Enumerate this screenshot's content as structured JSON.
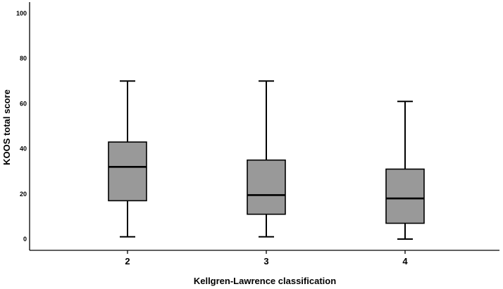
{
  "chart_data": {
    "type": "boxplot",
    "title": "",
    "xlabel": "Kellgren-Lawrence classification",
    "ylabel": "KOOS total score",
    "ylim": [
      0,
      100
    ],
    "yticks": [
      "0",
      "20",
      "40",
      "60",
      "80",
      "100"
    ],
    "yticks_values": [
      0,
      20,
      40,
      60,
      80,
      100
    ],
    "grid": false,
    "categories": [
      "2",
      "3",
      "4"
    ],
    "boxes": [
      {
        "category": "2",
        "whisker_low": 1,
        "q1": 17,
        "median": 32,
        "q3": 43,
        "whisker_high": 70
      },
      {
        "category": "3",
        "whisker_low": 1,
        "q1": 11,
        "median": 19.5,
        "q3": 35,
        "whisker_high": 70
      },
      {
        "category": "4",
        "whisker_low": 0,
        "q1": 7,
        "median": 18,
        "q3": 31,
        "whisker_high": 61
      }
    ],
    "box_fill": "#999999",
    "line_color": "#000000"
  }
}
